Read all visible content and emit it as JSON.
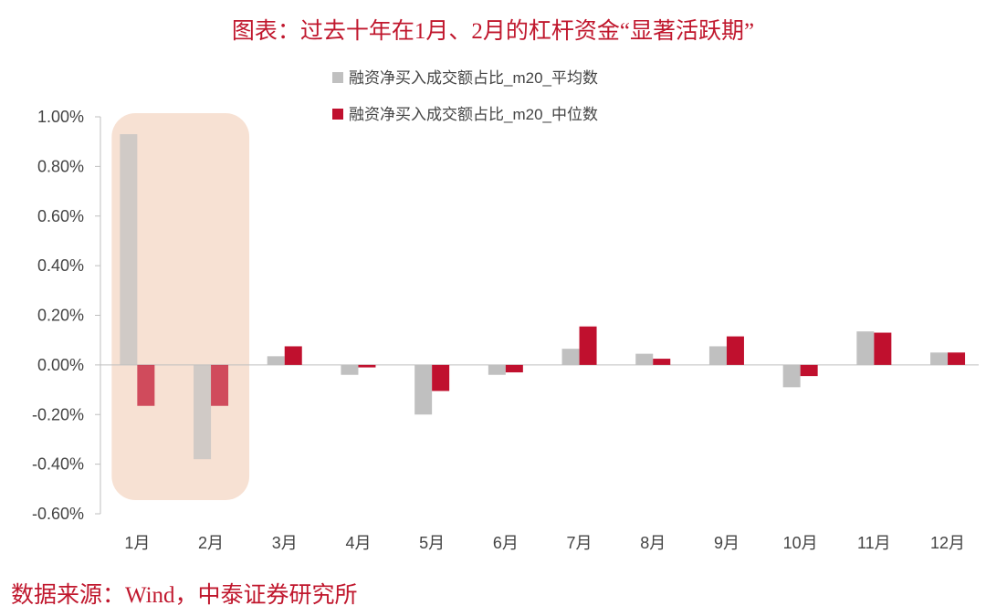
{
  "title": "图表：过去十年在1月、2月的杠杆资金“显著活跃期”",
  "source": "数据来源：Wind，中泰证券研究所",
  "colors": {
    "mean": "#c0c0c0",
    "median": "#c0102e",
    "highlight": "#f6dccb",
    "title": "#c0172d"
  },
  "chart_data": {
    "type": "bar",
    "categories": [
      "1月",
      "2月",
      "3月",
      "4月",
      "5月",
      "6月",
      "7月",
      "8月",
      "9月",
      "10月",
      "11月",
      "12月"
    ],
    "series": [
      {
        "name": "融资净买入成交额占比_m20_平均数",
        "values": [
          0.93,
          -0.38,
          0.035,
          -0.04,
          -0.2,
          -0.04,
          0.065,
          0.045,
          0.075,
          -0.09,
          0.135,
          0.05
        ]
      },
      {
        "name": "融资净买入成交额占比_m20_中位数",
        "values": [
          -0.165,
          -0.165,
          0.075,
          -0.01,
          -0.105,
          -0.03,
          0.155,
          0.025,
          0.115,
          -0.045,
          0.13,
          0.05
        ]
      }
    ],
    "yticks": [
      "1.00%",
      "0.80%",
      "0.60%",
      "0.40%",
      "0.20%",
      "0.00%",
      "-0.20%",
      "-0.40%",
      "-0.60%"
    ],
    "ylim": [
      -0.6,
      1.0
    ],
    "unit": "%",
    "highlight_categories": [
      "1月",
      "2月"
    ],
    "legend_position": "top-center",
    "grid": false
  }
}
